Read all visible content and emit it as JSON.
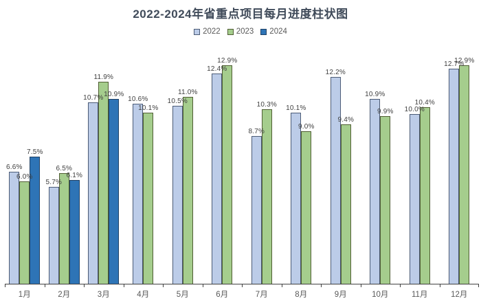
{
  "title": "2022-2024年省重点项目每月进度柱状图",
  "chart_data": {
    "type": "bar",
    "title": "2022-2024年省重点项目每月进度柱状图",
    "categories": [
      "1月",
      "2月",
      "3月",
      "4月",
      "5月",
      "6月",
      "7月",
      "8月",
      "9月",
      "10月",
      "11月",
      "12月"
    ],
    "series": [
      {
        "name": "2022",
        "color": "#BCCCE8",
        "border_color": "#4a5a75",
        "values": [
          6.6,
          5.7,
          10.7,
          10.6,
          10.5,
          12.4,
          8.7,
          10.1,
          12.2,
          10.9,
          10.0,
          12.7
        ]
      },
      {
        "name": "2023",
        "color": "#A5CD8D",
        "border_color": "#4f5d33",
        "values": [
          6.0,
          6.5,
          11.9,
          10.1,
          11.0,
          12.9,
          10.3,
          9.0,
          9.4,
          9.9,
          10.4,
          12.9
        ]
      },
      {
        "name": "2024",
        "color": "#2E74B6",
        "border_color": "#1f4064",
        "values": [
          7.5,
          6.1,
          10.9,
          null,
          null,
          null,
          null,
          null,
          null,
          null,
          null,
          null
        ]
      }
    ],
    "value_suffix": "%",
    "data_labels": true,
    "xlabel": "",
    "ylabel": "",
    "ylim": [
      0,
      14
    ],
    "grid": false,
    "y_axis_visible": false,
    "legend_position": "top",
    "axis_color": "#404040",
    "label_color": "#404040",
    "tick_label_color": "#595959",
    "title_color": "#404b5a"
  }
}
